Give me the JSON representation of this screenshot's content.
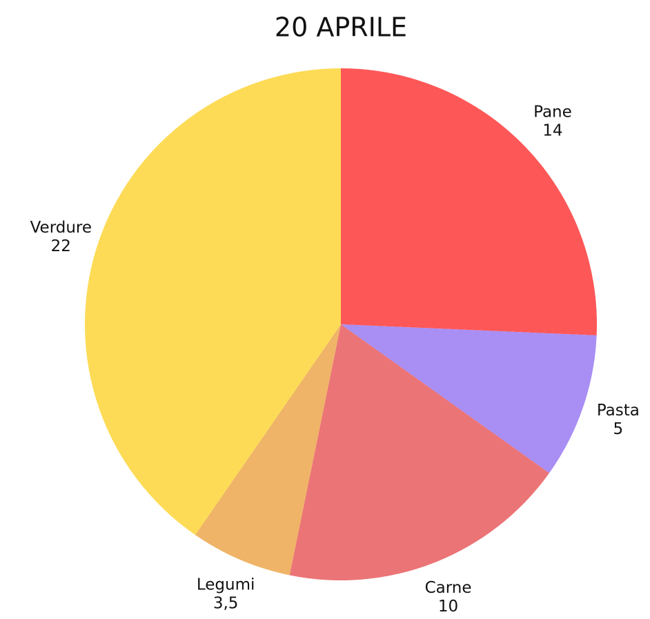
{
  "chart_data": {
    "type": "pie",
    "title": "20 APRILE",
    "categories": [
      "Pane",
      "Pasta",
      "Carne",
      "Legumi",
      "Verdure"
    ],
    "values": [
      14,
      5,
      10,
      3.5,
      22
    ],
    "value_labels": [
      "14",
      "5",
      "10",
      "3,5",
      "22"
    ],
    "colors": [
      "#fe5757",
      "#a98ef4",
      "#eb7476",
      "#efb467",
      "#fddb56"
    ]
  }
}
